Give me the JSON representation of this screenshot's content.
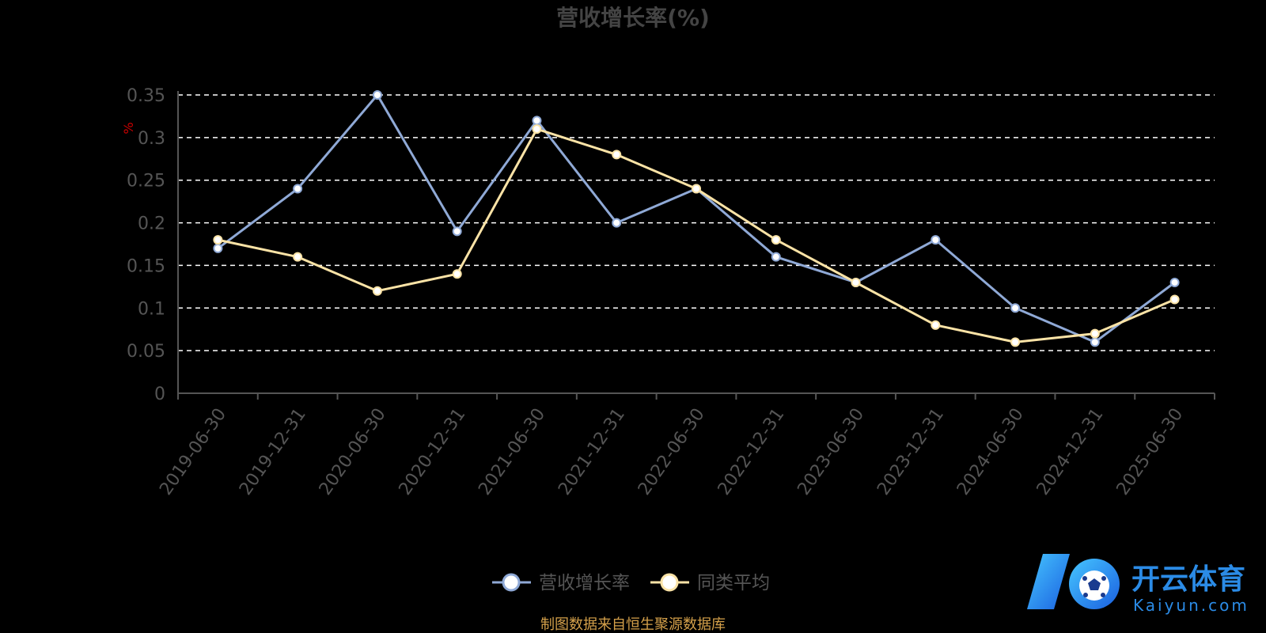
{
  "chart_data": {
    "type": "line",
    "title": "营收增长率(%)",
    "ylabel": "%",
    "xlabel": "",
    "categories": [
      "2019-06-30",
      "2019-12-31",
      "2020-06-30",
      "2020-12-31",
      "2021-06-30",
      "2021-12-31",
      "2022-06-30",
      "2022-12-31",
      "2023-06-30",
      "2023-12-31",
      "2024-06-30",
      "2024-12-31",
      "2025-06-30"
    ],
    "y_ticks": [
      "0",
      "0.05",
      "0.1",
      "0.15",
      "0.2",
      "0.25",
      "0.3",
      "0.35"
    ],
    "ylim": [
      0,
      0.35
    ],
    "grid": true,
    "legend_position": "bottom",
    "series": [
      {
        "name": "营收增长率",
        "values": [
          0.17,
          0.24,
          0.35,
          0.19,
          0.32,
          0.2,
          0.24,
          0.16,
          0.13,
          0.18,
          0.1,
          0.06,
          0.13
        ]
      },
      {
        "name": "同类平均",
        "values": [
          0.18,
          0.16,
          0.12,
          0.14,
          0.31,
          0.28,
          0.24,
          0.18,
          0.13,
          0.08,
          0.06,
          0.07,
          0.11
        ]
      }
    ],
    "source": "制图数据来自恒生聚源数据库"
  },
  "colors": {
    "background": "#000000",
    "title": "#444444",
    "axis": "#555555",
    "tick_text": "#555555",
    "grid": "#ffffff",
    "unit": "#cc0000",
    "series_1": "#8fa9d6",
    "series_2": "#fbe3a6",
    "source": "#d4a04a"
  },
  "watermark": {
    "icon": "soccer-ball-icon",
    "brand_text": "开云体育",
    "domain_text": "Kaiyun.com"
  }
}
